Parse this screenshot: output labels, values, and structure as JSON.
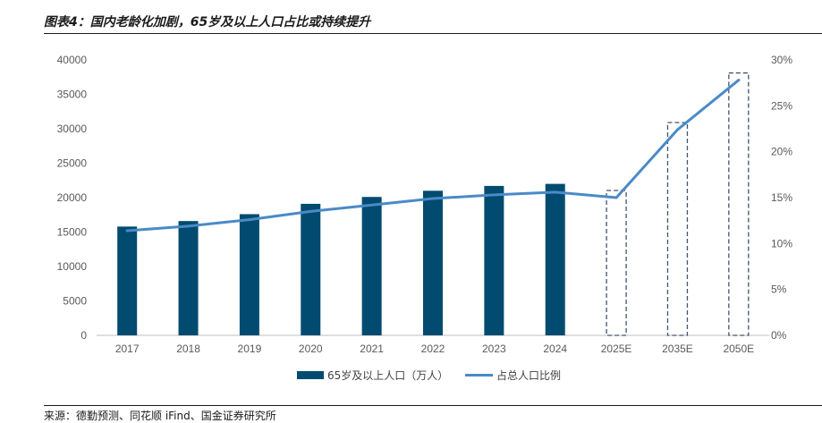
{
  "figure": {
    "title": "图表4：国内老龄化加剧，65岁及以上人口占比或持续提升",
    "source": "来源：德勤预测、同花顺 iFind、国金证券研究所"
  },
  "chart_data": {
    "type": "bar",
    "categories": [
      "2017",
      "2018",
      "2019",
      "2020",
      "2021",
      "2022",
      "2023",
      "2024",
      "2025E",
      "2035E",
      "2050E"
    ],
    "series": [
      {
        "name": "65岁及以上人口（万人）",
        "kind": "bar",
        "axis": "left",
        "values": [
          15800,
          16600,
          17600,
          19100,
          20100,
          21000,
          21700,
          22000,
          null,
          null,
          null
        ],
        "color": "#004b6f"
      },
      {
        "name": "占总人口比例",
        "kind": "line",
        "axis": "right",
        "values": [
          0.114,
          0.119,
          0.126,
          0.135,
          0.142,
          0.149,
          0.153,
          0.156,
          0.15,
          0.224,
          0.278
        ],
        "color": "#4a8ac8"
      }
    ],
    "projected_markers": [
      "2025E",
      "2035E",
      "2050E"
    ],
    "left_axis": {
      "ylim": [
        0,
        40000
      ],
      "ticks": [
        "0",
        "5000",
        "10000",
        "15000",
        "20000",
        "25000",
        "30000",
        "35000",
        "40000"
      ]
    },
    "right_axis": {
      "ylim": [
        0,
        0.3
      ],
      "ticks": [
        "0%",
        "5%",
        "10%",
        "15%",
        "20%",
        "25%",
        "30%"
      ]
    },
    "grid": false,
    "legend_position": "bottom"
  }
}
